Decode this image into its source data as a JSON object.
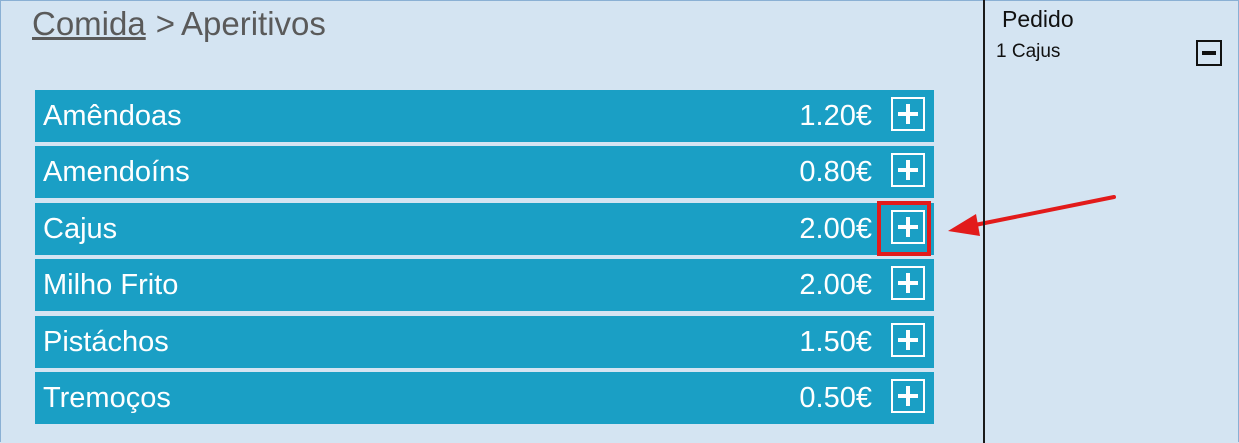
{
  "breadcrumb": {
    "parent": "Comida",
    "separator": ">",
    "current": "Aperitivos"
  },
  "menu": {
    "items": [
      {
        "name": "Amêndoas",
        "price": "1.20€"
      },
      {
        "name": "Amendoíns",
        "price": "0.80€"
      },
      {
        "name": "Cajus",
        "price": "2.00€"
      },
      {
        "name": "Milho Frito",
        "price": "2.00€"
      },
      {
        "name": "Pistáchos",
        "price": "1.50€"
      },
      {
        "name": "Tremoços",
        "price": "0.50€"
      }
    ],
    "add_icon": "plus-icon"
  },
  "order": {
    "title": "Pedido",
    "lines": [
      {
        "text": "1 Cajus"
      }
    ],
    "remove_icon": "minus-icon"
  },
  "annotation": {
    "highlight_color": "#e21b1b",
    "highlighted_item": "Cajus"
  },
  "colors": {
    "background": "#d4e4f2",
    "item_background": "#1a9fc5",
    "item_text": "#ffffff",
    "divider": "#1a1a1a"
  }
}
